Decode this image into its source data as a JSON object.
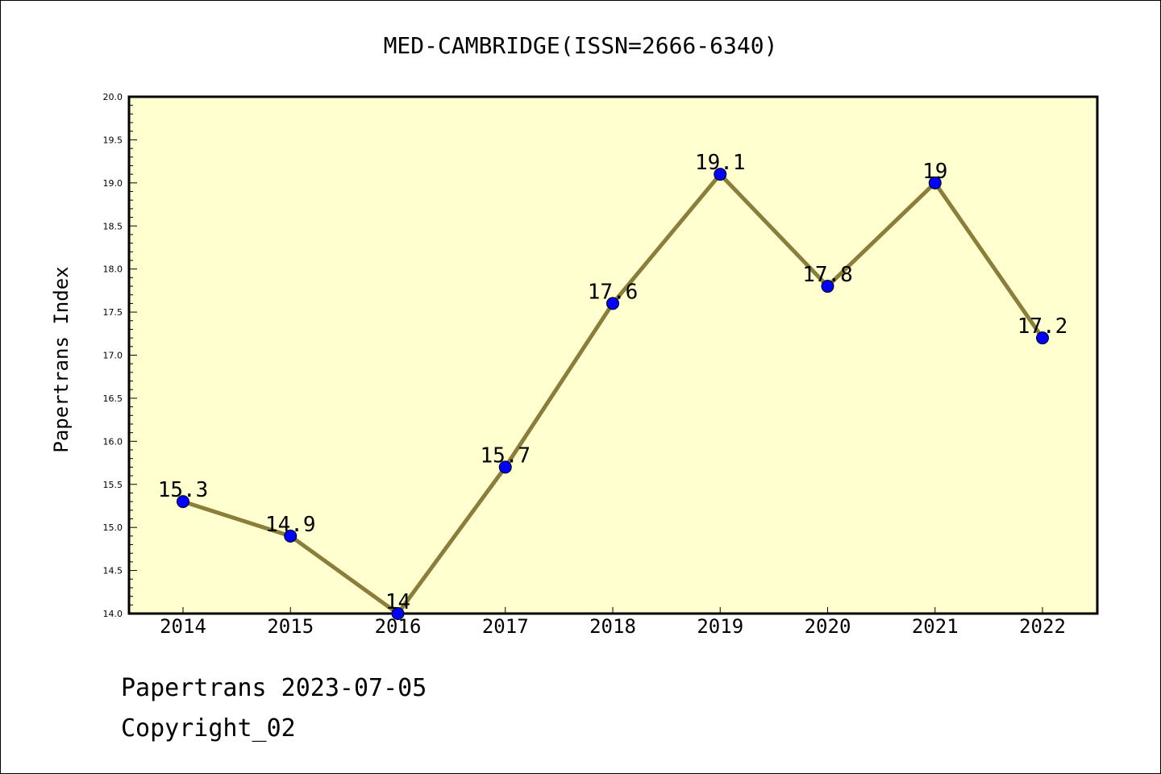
{
  "chart_data": {
    "type": "line",
    "title": "MED-CAMBRIDGE(ISSN=2666-6340)",
    "ylabel": "Papertrans Index",
    "xlabel": "",
    "categories": [
      "2014",
      "2015",
      "2016",
      "2017",
      "2018",
      "2019",
      "2020",
      "2021",
      "2022"
    ],
    "values": [
      15.3,
      14.9,
      14.0,
      15.7,
      17.6,
      19.1,
      17.8,
      19.0,
      17.2
    ],
    "data_labels": [
      "15.3",
      "14.9",
      "14",
      "15.7",
      "17.6",
      "19.1",
      "17.8",
      "19",
      "17.2"
    ],
    "ylim": [
      14.0,
      20.0
    ],
    "yticks": [
      "14.0",
      "14.5",
      "15.0",
      "15.5",
      "16.0",
      "16.5",
      "17.0",
      "17.5",
      "18.0",
      "18.5",
      "19.0",
      "19.5",
      "20.0"
    ],
    "grid": false,
    "legend": "none",
    "colors": {
      "plot_background": "#ffffd0",
      "line": "#8b7d3a",
      "marker": "#0000ff"
    }
  },
  "footer": {
    "line1": "Papertrans 2023-07-05",
    "line2": "Copyright_02"
  }
}
